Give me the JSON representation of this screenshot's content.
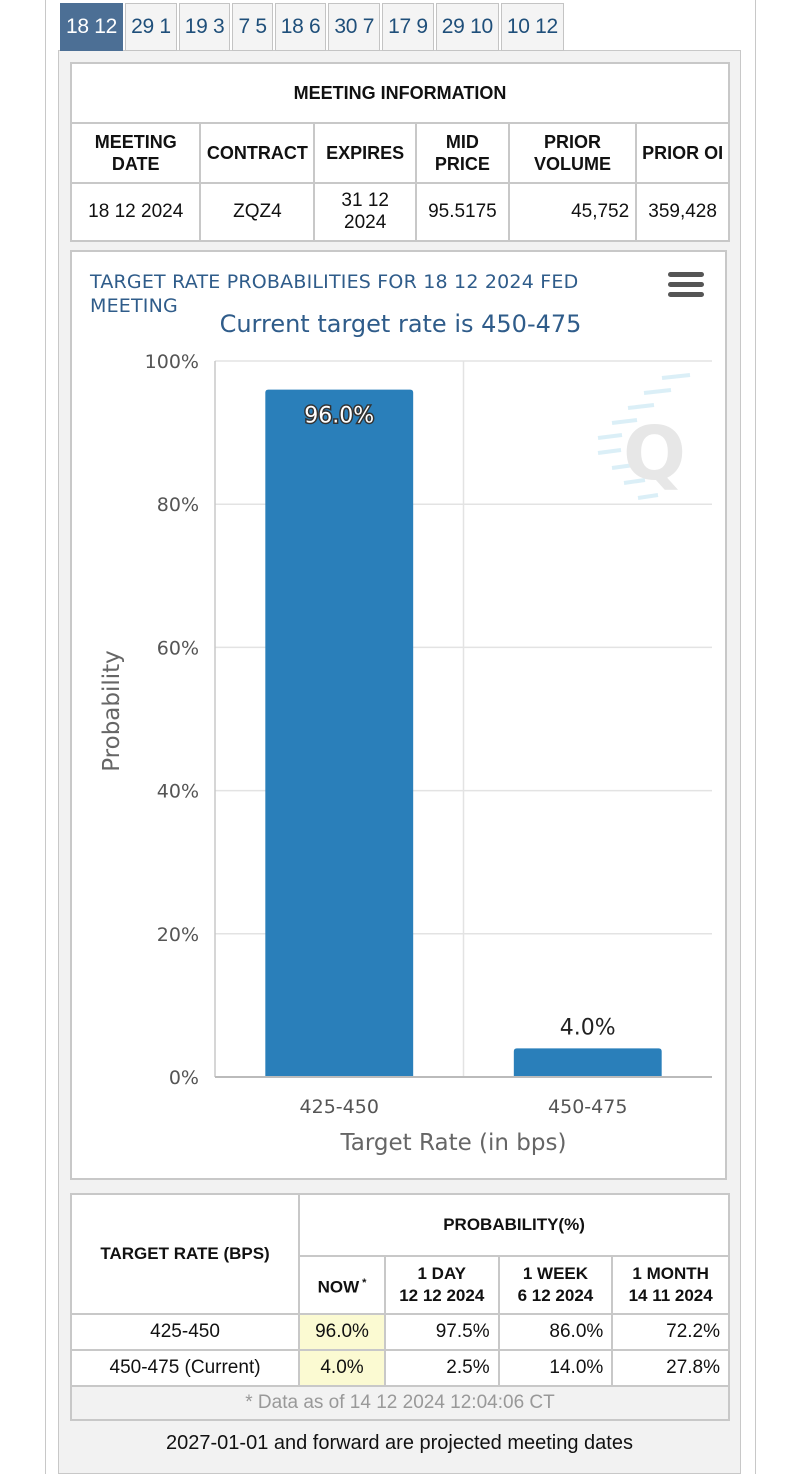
{
  "tabs": [
    "18 12",
    "29 1",
    "19 3",
    "7 5",
    "18 6",
    "30 7",
    "17 9",
    "29 10",
    "10 12"
  ],
  "meeting": {
    "title": "MEETING INFORMATION",
    "headers": {
      "date": "MEETING DATE",
      "contract": "CONTRACT",
      "expires": "EXPIRES",
      "mid": "MID PRICE",
      "volume": "PRIOR VOLUME",
      "oi": "PRIOR OI"
    },
    "row": {
      "date": "18 12 2024",
      "contract": "ZQZ4",
      "expires": "31 12 2024",
      "mid": "95.5175",
      "volume": "45,752",
      "oi": "359,428"
    }
  },
  "chart_data": {
    "type": "bar",
    "title": "TARGET RATE PROBABILITIES FOR 18 12 2024 FED MEETING",
    "subtitle": "Current target rate is 450-475",
    "categories": [
      "425-450",
      "450-475"
    ],
    "values": [
      96.0,
      4.0
    ],
    "data_labels": [
      "96.0%",
      "4.0%"
    ],
    "xlabel": "Target Rate (in bps)",
    "ylabel": "Probability",
    "ylim": [
      0,
      100
    ],
    "yticks": [
      "0%",
      "20%",
      "40%",
      "60%",
      "80%",
      "100%"
    ],
    "ytick_values": [
      0,
      20,
      40,
      60,
      80,
      100
    ],
    "grid": true,
    "bar_color": "#2a7fba"
  },
  "prob_table": {
    "rate_header": "TARGET RATE (BPS)",
    "prob_header": "PROBABILITY(%)",
    "now_header": "NOW",
    "now_mark": "*",
    "cols": [
      {
        "label": "1 DAY",
        "date": "12 12 2024"
      },
      {
        "label": "1 WEEK",
        "date": "6 12 2024"
      },
      {
        "label": "1 MONTH",
        "date": "14 11 2024"
      }
    ],
    "rows": [
      {
        "rate": "425-450",
        "now": "96.0%",
        "day": "97.5%",
        "week": "86.0%",
        "month": "72.2%"
      },
      {
        "rate": "450-475 (Current)",
        "now": "4.0%",
        "day": "2.5%",
        "week": "14.0%",
        "month": "27.8%"
      }
    ],
    "footnote": "* Data as of 14 12 2024 12:04:06 CT"
  },
  "footer": "2027-01-01 and forward are projected meeting dates",
  "icons": {
    "menu": "hamburger-menu-icon",
    "watermark": "q-logo-watermark"
  }
}
